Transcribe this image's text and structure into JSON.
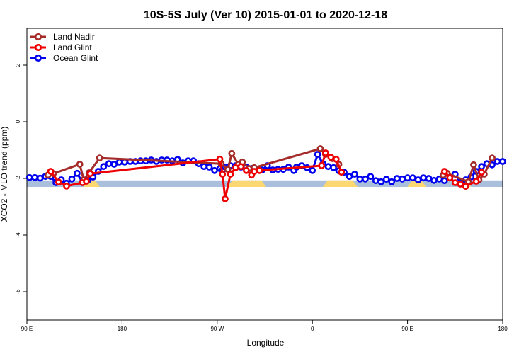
{
  "chart_data": {
    "type": "line",
    "title": "10S-5S July (Ver 10)   2015-01-01 to 2020-12-18",
    "xlabel": "Longitude",
    "ylabel": "XCO2 - MLO trend (ppm)",
    "xlim": [
      -90,
      270
    ],
    "ylim": [
      -7,
      3.3
    ],
    "x_ticks": [
      {
        "value": -90,
        "label": "90 E"
      },
      {
        "value": -18,
        "label": "180"
      },
      {
        "value": 54,
        "label": "90 W"
      },
      {
        "value": 126,
        "label": "0"
      },
      {
        "value": 198,
        "label": "90 E"
      },
      {
        "value": 270,
        "label": "180"
      }
    ],
    "y_ticks": [
      {
        "value": 2,
        "label": "2"
      },
      {
        "value": 0,
        "label": "0"
      },
      {
        "value": -2,
        "label": "-2"
      },
      {
        "value": -4,
        "label": "-4"
      },
      {
        "value": -6,
        "label": "-6"
      }
    ],
    "land_mask": {
      "y_bottom": -2.3,
      "y_top": -2.07,
      "ocean_color": "#a9bfdc",
      "land_color": "#fbd872",
      "land_segments": [
        [
          -45,
          -37
        ],
        [
          64,
          89
        ],
        [
          136,
          158
        ],
        [
          200,
          210
        ],
        [
          240,
          244
        ]
      ]
    },
    "legend": {
      "position": "top-left",
      "entries": [
        {
          "label": "Land Nadir",
          "color": "#a52a2a"
        },
        {
          "label": "Land Glint",
          "color": "#ee0000"
        },
        {
          "label": "Ocean Glint",
          "color": "#0000ee"
        }
      ]
    },
    "series": [
      {
        "name": "Ocean Glint",
        "color": "#0000ee",
        "x": [
          -88,
          -84,
          -80,
          -76,
          -72,
          -68,
          -64,
          -60,
          -56,
          -52,
          -48,
          -44,
          -40,
          -36,
          -32,
          -28,
          -24,
          -20,
          -16,
          -12,
          -8,
          -4,
          0,
          4,
          8,
          12,
          16,
          20,
          24,
          28,
          32,
          36,
          40,
          44,
          48,
          52,
          56,
          58,
          60,
          64,
          68,
          72,
          76,
          80,
          84,
          88,
          92,
          96,
          100,
          104,
          108,
          112,
          114,
          118,
          122,
          126,
          130,
          134,
          138,
          142,
          146,
          150,
          154,
          158,
          162,
          166,
          170,
          174,
          178,
          182,
          186,
          190,
          194,
          198,
          202,
          206,
          210,
          214,
          218,
          222,
          226,
          230,
          234,
          238,
          242,
          246,
          250,
          254,
          258,
          262,
          266,
          270
        ],
        "y": [
          -1.97,
          -1.97,
          -1.99,
          -1.93,
          -1.93,
          -2.15,
          -2.05,
          -2.17,
          -2.02,
          -1.82,
          -2.13,
          -2.07,
          -1.95,
          -1.75,
          -1.58,
          -1.48,
          -1.5,
          -1.42,
          -1.42,
          -1.4,
          -1.4,
          -1.38,
          -1.38,
          -1.35,
          -1.4,
          -1.35,
          -1.35,
          -1.38,
          -1.33,
          -1.45,
          -1.38,
          -1.38,
          -1.48,
          -1.58,
          -1.6,
          -1.72,
          -1.65,
          -1.7,
          -1.6,
          -1.55,
          -1.55,
          -1.6,
          -1.6,
          -1.65,
          -1.68,
          -1.7,
          -1.55,
          -1.7,
          -1.68,
          -1.68,
          -1.6,
          -1.72,
          -1.6,
          -1.55,
          -1.62,
          -1.72,
          -1.15,
          -1.48,
          -1.58,
          -1.62,
          -1.73,
          -1.78,
          -1.93,
          -1.85,
          -2.02,
          -2.02,
          -1.93,
          -2.08,
          -2.12,
          -2.03,
          -2.12,
          -2.0,
          -2.02,
          -1.98,
          -1.98,
          -2.05,
          -1.98,
          -2.0,
          -2.07,
          -2.02,
          -2.08,
          -1.98,
          -1.85,
          -2.13,
          -2.05,
          -1.95,
          -1.75,
          -1.58,
          -1.48,
          -1.52,
          -1.4,
          -1.4
        ]
      },
      {
        "name": "Land Nadir",
        "color": "#a52a2a",
        "x": [
          -74,
          -70,
          -50,
          -47,
          -43,
          -35,
          57,
          62,
          65,
          70,
          73,
          78,
          82,
          132,
          136,
          141,
          146
        ],
        "y": [
          -1.88,
          -1.83,
          -1.5,
          -2.05,
          -1.8,
          -1.28,
          -1.48,
          -1.68,
          -1.12,
          -1.5,
          -1.42,
          -1.65,
          -1.62,
          -0.95,
          -1.15,
          -1.3,
          -1.5
        ]
      },
      {
        "name": "Land Glint",
        "color": "#ee0000",
        "x": [
          -72,
          -66,
          -60,
          -48,
          -45,
          -42,
          56,
          58,
          60,
          64,
          68,
          72,
          76,
          80,
          82,
          86,
          133,
          136,
          140,
          144,
          148
        ],
        "y": [
          -1.75,
          -2.13,
          -2.27,
          -2.15,
          -2.1,
          -1.83,
          -1.32,
          -1.85,
          -2.72,
          -1.85,
          -1.62,
          -1.58,
          -1.72,
          -1.88,
          -1.75,
          -1.72,
          -1.55,
          -1.1,
          -1.25,
          -1.32,
          -1.78
        ]
      },
      {
        "name": "Land Nadir",
        "color": "#a52a2a",
        "x": [
          225,
          228,
          244,
          248,
          252,
          256,
          262
        ],
        "y": [
          -1.88,
          -1.82,
          -2.12,
          -1.52,
          -2.05,
          -1.85,
          -1.28
        ]
      },
      {
        "name": "Land Glint",
        "color": "#ee0000",
        "x": [
          226,
          230,
          234,
          238,
          242,
          250,
          254
        ],
        "y": [
          -1.75,
          -1.98,
          -2.15,
          -2.2,
          -2.28,
          -2.1,
          -1.78
        ]
      }
    ]
  }
}
